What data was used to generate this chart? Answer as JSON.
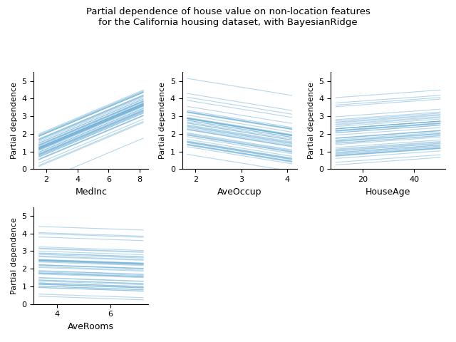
{
  "title": "Partial dependence of house value on non-location features\nfor the California housing dataset, with BayesianRidge",
  "plot_features": [
    "MedInc",
    "AveOccup",
    "HouseAge",
    "AveRooms"
  ],
  "feature_indices": [
    0,
    5,
    1,
    2
  ],
  "n_ice_lines": 50,
  "line_color": "#6baed6",
  "line_alpha": 0.5,
  "line_width": 0.8,
  "ylabel": "Partial dependence",
  "background_color": "#ffffff",
  "ylim": [
    0,
    5.5
  ],
  "subsample": 50,
  "grid_resolution": 20,
  "random_state": 42,
  "percentiles": [
    0.05,
    0.95
  ]
}
